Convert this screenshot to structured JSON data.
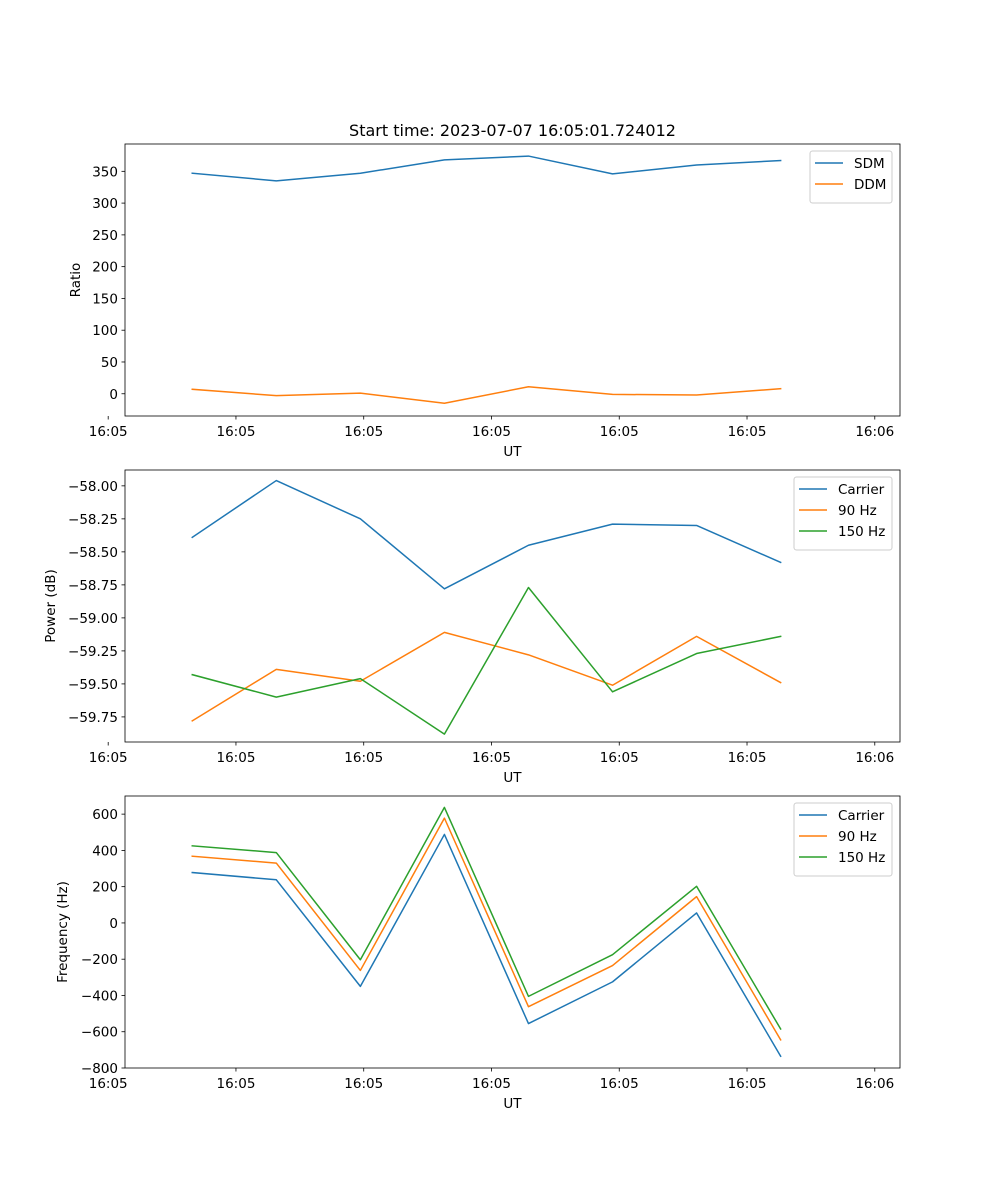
{
  "chart_data": [
    {
      "type": "line",
      "title": "Start time: 2023-07-07 16:05:01.724012",
      "xlabel": "UT",
      "ylabel": "Ratio",
      "x": [
        0.5,
        1,
        1.5,
        2,
        2.5,
        3,
        3.5,
        4
      ],
      "xlim": [
        0.1,
        4.71
      ],
      "xticks": [
        0,
        0.76,
        1.52,
        2.28,
        3.04,
        3.8,
        4.56
      ],
      "xtick_labels": [
        "16:05",
        "16:05",
        "16:05",
        "16:05",
        "16:05",
        "16:05",
        "16:06"
      ],
      "ylim": [
        -35,
        393
      ],
      "yticks": [
        0,
        50,
        100,
        150,
        200,
        250,
        300,
        350
      ],
      "legend": "top-right",
      "grid": false,
      "series": [
        {
          "name": "SDM",
          "color": "#1f77b4",
          "values": [
            347,
            335,
            347,
            368,
            374,
            346,
            360,
            367
          ]
        },
        {
          "name": "DDM",
          "color": "#ff7f0e",
          "values": [
            7,
            -3,
            1,
            -15,
            11,
            -1,
            -2,
            8
          ]
        }
      ]
    },
    {
      "type": "line",
      "title": "",
      "xlabel": "UT",
      "ylabel": "Power (dB)",
      "x": [
        0.5,
        1,
        1.5,
        2,
        2.5,
        3,
        3.5,
        4
      ],
      "xlim": [
        0.1,
        4.71
      ],
      "xticks": [
        0,
        0.76,
        1.52,
        2.28,
        3.04,
        3.8,
        4.56
      ],
      "xtick_labels": [
        "16:05",
        "16:05",
        "16:05",
        "16:05",
        "16:05",
        "16:05",
        "16:06"
      ],
      "ylim": [
        -59.94,
        -57.88
      ],
      "yticks": [
        -59.75,
        -59.5,
        -59.25,
        -59.0,
        -58.75,
        -58.5,
        -58.25,
        -58.0
      ],
      "ytick_labels": [
        "−59.75",
        "−59.50",
        "−59.25",
        "−59.00",
        "−58.75",
        "−58.50",
        "−58.25",
        "−58.00"
      ],
      "legend": "top-right",
      "grid": false,
      "series": [
        {
          "name": "Carrier",
          "color": "#1f77b4",
          "values": [
            -58.39,
            -57.96,
            -58.25,
            -58.78,
            -58.45,
            -58.29,
            -58.3,
            -58.58
          ]
        },
        {
          "name": "90 Hz",
          "color": "#ff7f0e",
          "values": [
            -59.78,
            -59.39,
            -59.48,
            -59.11,
            -59.28,
            -59.51,
            -59.14,
            -59.49
          ]
        },
        {
          "name": "150 Hz",
          "color": "#2ca02c",
          "values": [
            -59.43,
            -59.6,
            -59.46,
            -59.88,
            -58.77,
            -59.56,
            -59.27,
            -59.14
          ]
        }
      ]
    },
    {
      "type": "line",
      "title": "",
      "xlabel": "UT",
      "ylabel": "Frequency (Hz)",
      "x": [
        0.5,
        1,
        1.5,
        2,
        2.5,
        3,
        3.5,
        4
      ],
      "xlim": [
        0.1,
        4.71
      ],
      "xticks": [
        0,
        0.76,
        1.52,
        2.28,
        3.04,
        3.8,
        4.56
      ],
      "xtick_labels": [
        "16:05",
        "16:05",
        "16:05",
        "16:05",
        "16:05",
        "16:05",
        "16:06"
      ],
      "ylim": [
        -800,
        700
      ],
      "yticks": [
        -800,
        -600,
        -400,
        -200,
        0,
        200,
        400,
        600
      ],
      "ytick_labels": [
        "−800",
        "−600",
        "−400",
        "−200",
        "0",
        "200",
        "400",
        "600"
      ],
      "legend": "top-right",
      "grid": false,
      "series": [
        {
          "name": "Carrier",
          "color": "#1f77b4",
          "values": [
            278,
            238,
            -350,
            488,
            -555,
            -325,
            55,
            -735
          ]
        },
        {
          "name": "90 Hz",
          "color": "#ff7f0e",
          "values": [
            368,
            330,
            -262,
            578,
            -462,
            -235,
            145,
            -645
          ]
        },
        {
          "name": "150 Hz",
          "color": "#2ca02c",
          "values": [
            425,
            388,
            -203,
            637,
            -405,
            -175,
            202,
            -585
          ]
        }
      ]
    }
  ]
}
